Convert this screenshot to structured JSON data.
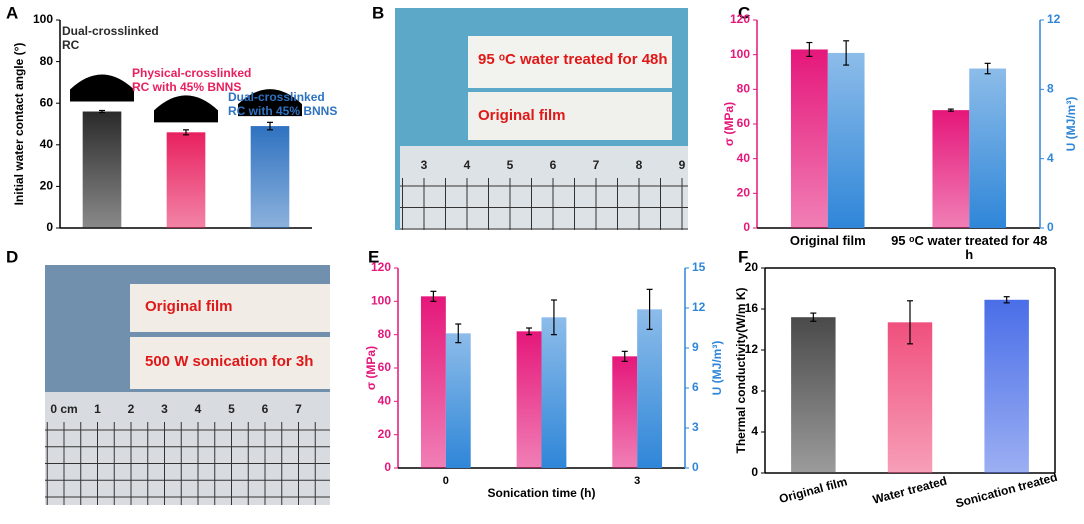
{
  "panel_labels": [
    "A",
    "B",
    "C",
    "D",
    "E",
    "F"
  ],
  "photos": [
    {
      "captions": [
        "95 ᵒC water treated for 48h",
        "Original film"
      ],
      "ruler": [
        "3",
        "4",
        "5",
        "6",
        "7",
        "8",
        "9"
      ]
    },
    {
      "captions": [
        "Original film",
        "500 W sonication for 3h"
      ],
      "ruler": [
        "0 cm",
        "1",
        "2",
        "3",
        "4",
        "5",
        "6",
        "7"
      ]
    }
  ],
  "chart_data": [
    {
      "type": "bar",
      "ylabel": "Initial water contact angle (°)",
      "categories": [
        "Dual-crosslinked RC",
        "Physical-crosslinked RC with 45% BNNS",
        "Dual-crosslinked RC with 45% BNNS"
      ],
      "label_position": "above",
      "series": [
        {
          "values": [
            56,
            46,
            49
          ],
          "errors": [
            0.5,
            1.2,
            1.8
          ],
          "colors": [
            "#2a2a2a",
            "#e8205f",
            "#2f72c0"
          ]
        }
      ],
      "ylim": [
        0,
        100
      ],
      "yticks": [
        0,
        20,
        40,
        60,
        80,
        100
      ]
    },
    {
      "type": "bar",
      "ylabel": "σ (MPa)",
      "y2label": "U (MJ/m³)",
      "categories": [
        "Original film",
        "95 ᵒC  water treated for 48 h"
      ],
      "series": [
        {
          "values": [
            103,
            68
          ],
          "errors": [
            4,
            0.6
          ],
          "color": "#e5177a"
        },
        {
          "values": [
            10.1,
            9.2
          ],
          "errors": [
            0.7,
            0.3
          ],
          "color": "#2f86d8",
          "axis": "y2"
        }
      ],
      "ylim": [
        0,
        120
      ],
      "yticks": [
        0,
        20,
        40,
        60,
        80,
        100,
        120
      ],
      "y2lim": [
        0,
        12
      ],
      "y2ticks": [
        0,
        4,
        8,
        12
      ]
    },
    {
      "type": "bar",
      "ylabel": "σ (MPa)",
      "y2label": "U (MJ/m³)",
      "xlabel": "Sonication time (h)",
      "categories": [
        "0",
        null,
        "3"
      ],
      "series": [
        {
          "values": [
            103,
            82,
            67
          ],
          "errors": [
            3,
            2,
            3
          ],
          "color": "#e5177a"
        },
        {
          "values": [
            10.1,
            11.3,
            11.9
          ],
          "errors": [
            0.7,
            1.3,
            1.5
          ],
          "color": "#2f86d8",
          "axis": "y2"
        }
      ],
      "ylim": [
        0,
        120
      ],
      "yticks": [
        0,
        20,
        40,
        60,
        80,
        100,
        120
      ],
      "y2lim": [
        0,
        15
      ],
      "y2ticks": [
        0,
        3,
        6,
        9,
        12,
        15
      ]
    },
    {
      "type": "bar",
      "ylabel": "Thermal conductivity(W/m K)",
      "categories": [
        "Original film",
        "Water treated",
        "Sonication treated"
      ],
      "rotate_labels": true,
      "frame": true,
      "series": [
        {
          "values": [
            15.2,
            14.7,
            16.9
          ],
          "errors": [
            0.4,
            2.1,
            0.3
          ],
          "colors": [
            "#4a4a4a",
            "#f0507e",
            "#4a6ee8"
          ]
        }
      ],
      "ylim": [
        0,
        20
      ],
      "yticks": [
        0,
        4,
        8,
        12,
        16,
        20
      ]
    }
  ]
}
